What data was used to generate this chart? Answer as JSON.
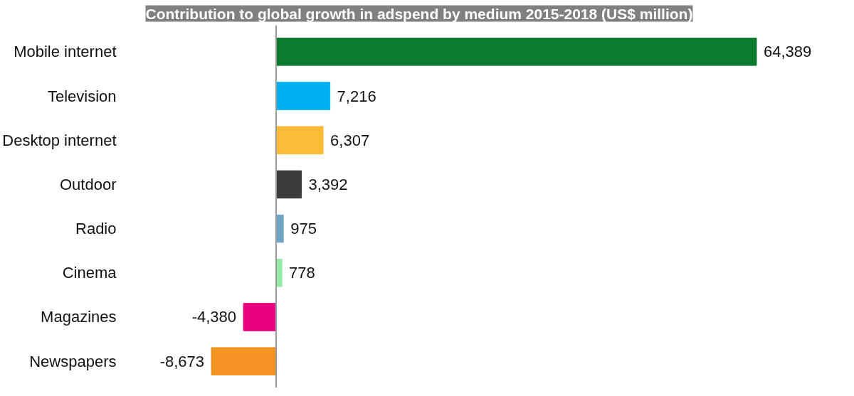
{
  "chart_data": {
    "type": "bar",
    "orientation": "horizontal",
    "title": "Contribution to global growth in adspend by medium 2015-2018 (US$ million)",
    "categories": [
      "Mobile internet",
      "Television",
      "Desktop internet",
      "Outdoor",
      "Radio",
      "Cinema",
      "Magazines",
      "Newspapers"
    ],
    "values": [
      64389,
      7216,
      6307,
      3392,
      975,
      778,
      -4380,
      -8673
    ],
    "colors": [
      "#0b7a2e",
      "#00b0f0",
      "#fbbb36",
      "#3c3c3c",
      "#6fa3c4",
      "#92eaa8",
      "#e6007e",
      "#f39322"
    ],
    "value_labels": [
      "64,389",
      "7,216",
      "6,307",
      "3,392",
      "975",
      "778",
      "-4,380",
      "-8,673"
    ],
    "grid": false
  }
}
